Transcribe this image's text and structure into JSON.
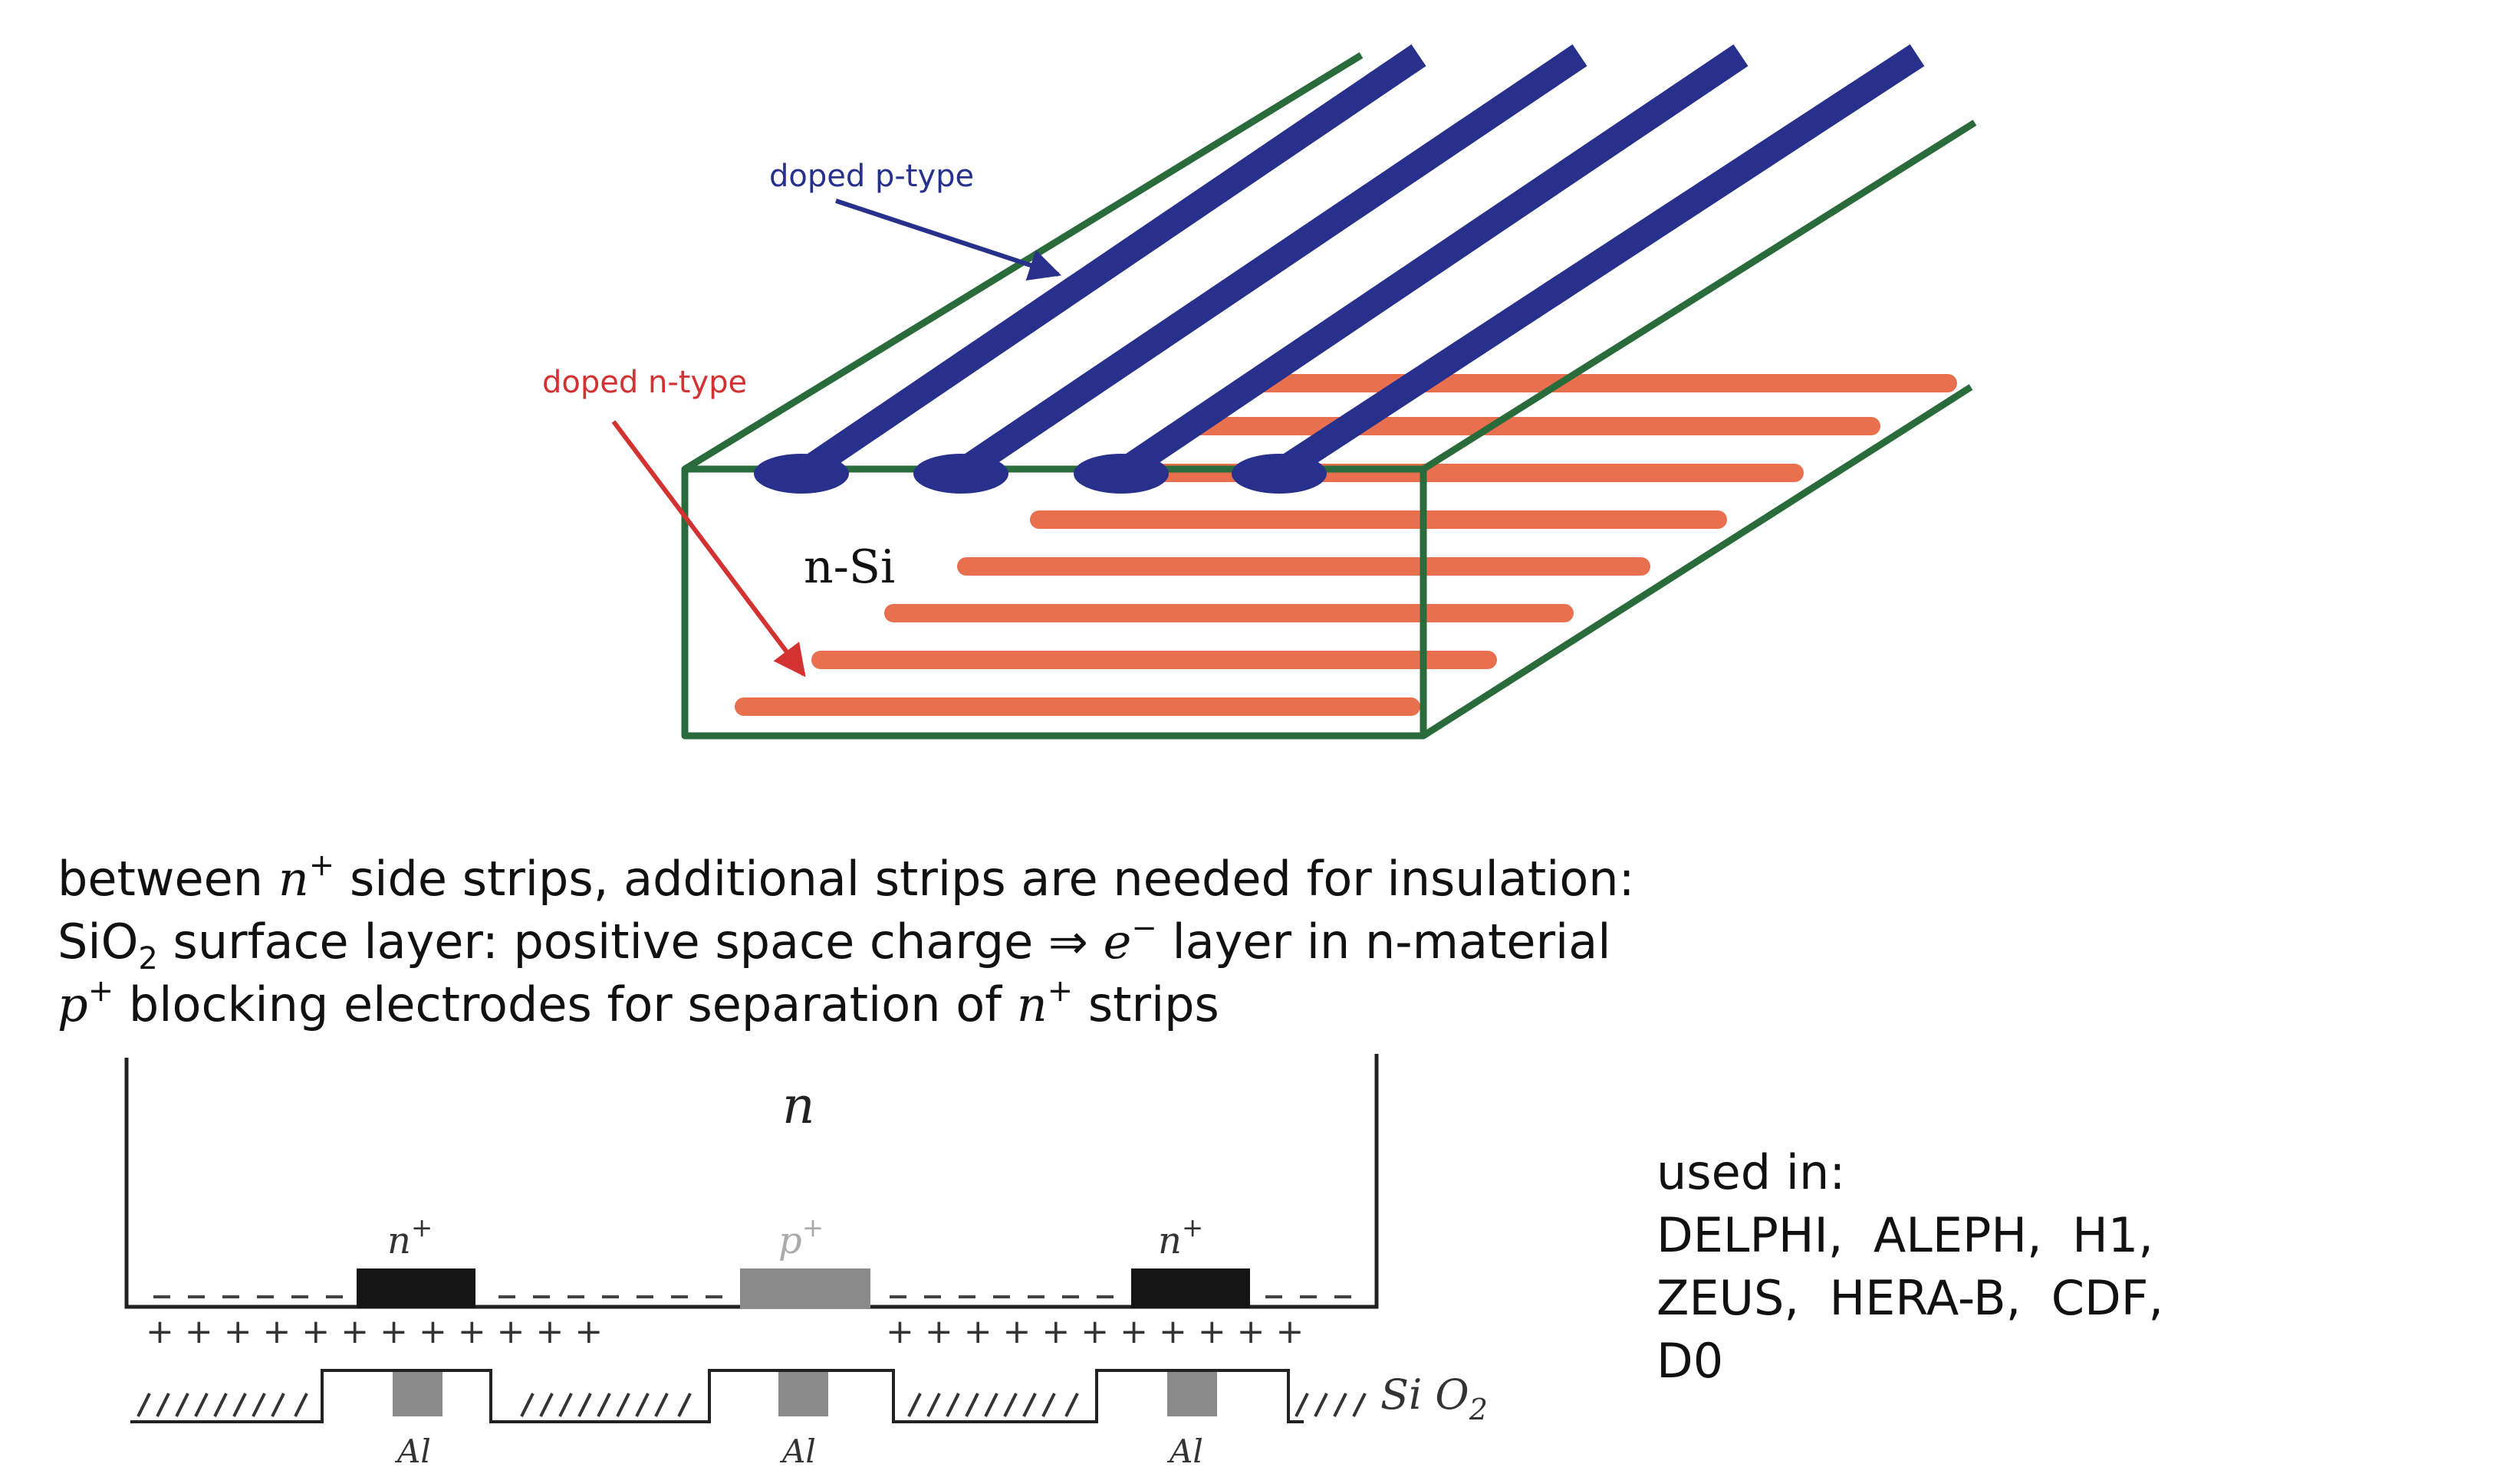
{
  "top_diagram": {
    "label_p_type": "doped p-type",
    "label_n_type": "doped n-type",
    "label_bulk": "n-Si",
    "colors": {
      "frame": "#2a6b3c",
      "p_strip": "#27308a",
      "n_strip": "#e8704f",
      "p_arrow": "#27308a",
      "n_arrow": "#d23232"
    }
  },
  "text_block": {
    "line1": {
      "a": "between ",
      "n": "n",
      "plus": "+",
      "b": " side strips, additional strips are needed for insulation:"
    },
    "line2": {
      "a": "SiO",
      "sub2": "2",
      "b": " surface layer: positive space charge ⇒ ",
      "e": "e",
      "minus": "−",
      "c": " layer in n-material"
    },
    "line3": {
      "p": "p",
      "plus": "+",
      "a": " blocking electrodes for separation of ",
      "n": "n",
      "plus2": "+",
      "b": " strips"
    }
  },
  "cross_section": {
    "label_n": "n",
    "label_nplus": "n",
    "nplus_sup": "+",
    "label_pplus": "p",
    "pplus_sup": "+",
    "label_al": "Al",
    "label_sio2": "Si O",
    "sio2_sub": "2"
  },
  "used_in": {
    "heading": "used in:",
    "line1": "DELPHI,  ALEPH,  H1,",
    "line2": "ZEUS,  HERA-B,  CDF,",
    "line3": "D0"
  }
}
